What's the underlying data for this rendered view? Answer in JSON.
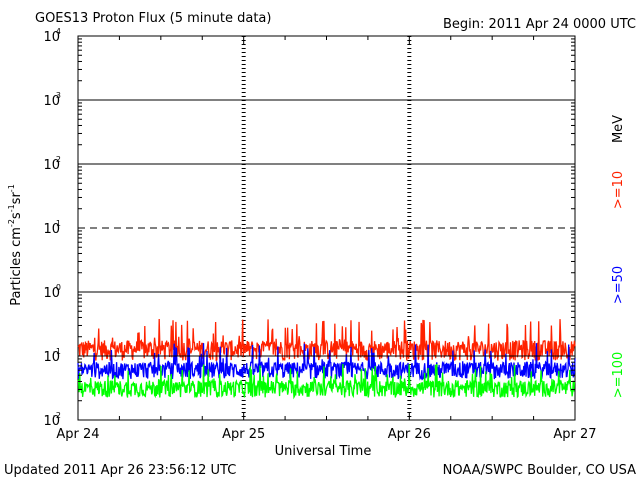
{
  "header": {
    "title": "GOES13 Proton Flux (5 minute data)",
    "begin": "Begin: 2011 Apr 24 0000 UTC"
  },
  "footer": {
    "updated": "Updated 2011 Apr 26 23:56:12 UTC",
    "credit": "NOAA/SWPC Boulder, CO USA"
  },
  "chart_data": {
    "type": "line",
    "title": "GOES13 Proton Flux (5 minute data)",
    "xlabel": "Universal Time",
    "ylabel": "Particles cm-2 s-1 sr-1",
    "yscale": "log",
    "ylim": [
      0.01,
      10000
    ],
    "x_ticks": [
      "Apr 24",
      "Apr 25",
      "Apr 26",
      "Apr 27"
    ],
    "y_ticks": [
      {
        "base": "10",
        "exp": "-2",
        "value": 0.01
      },
      {
        "base": "10",
        "exp": "-1",
        "value": 0.1
      },
      {
        "base": "10",
        "exp": "0",
        "value": 1
      },
      {
        "base": "10",
        "exp": "1",
        "value": 10
      },
      {
        "base": "10",
        "exp": "2",
        "value": 100
      },
      {
        "base": "10",
        "exp": "3",
        "value": 1000
      },
      {
        "base": "10",
        "exp": "4",
        "value": 10000
      }
    ],
    "thresholds": [
      {
        "value": 10,
        "style": "dashed"
      },
      {
        "value": 0.1,
        "style": "solid"
      }
    ],
    "units_label": "MeV",
    "series": [
      {
        "name": ">=10",
        "color": "#ff2200",
        "base": 0.13,
        "variability": 0.35,
        "spike_max": 0.38
      },
      {
        "name": ">=50",
        "color": "#0000ff",
        "base": 0.062,
        "variability": 0.3,
        "spike_max": 0.16
      },
      {
        "name": ">=100",
        "color": "#00ff00",
        "base": 0.032,
        "variability": 0.3,
        "spike_max": 0.075
      }
    ]
  }
}
